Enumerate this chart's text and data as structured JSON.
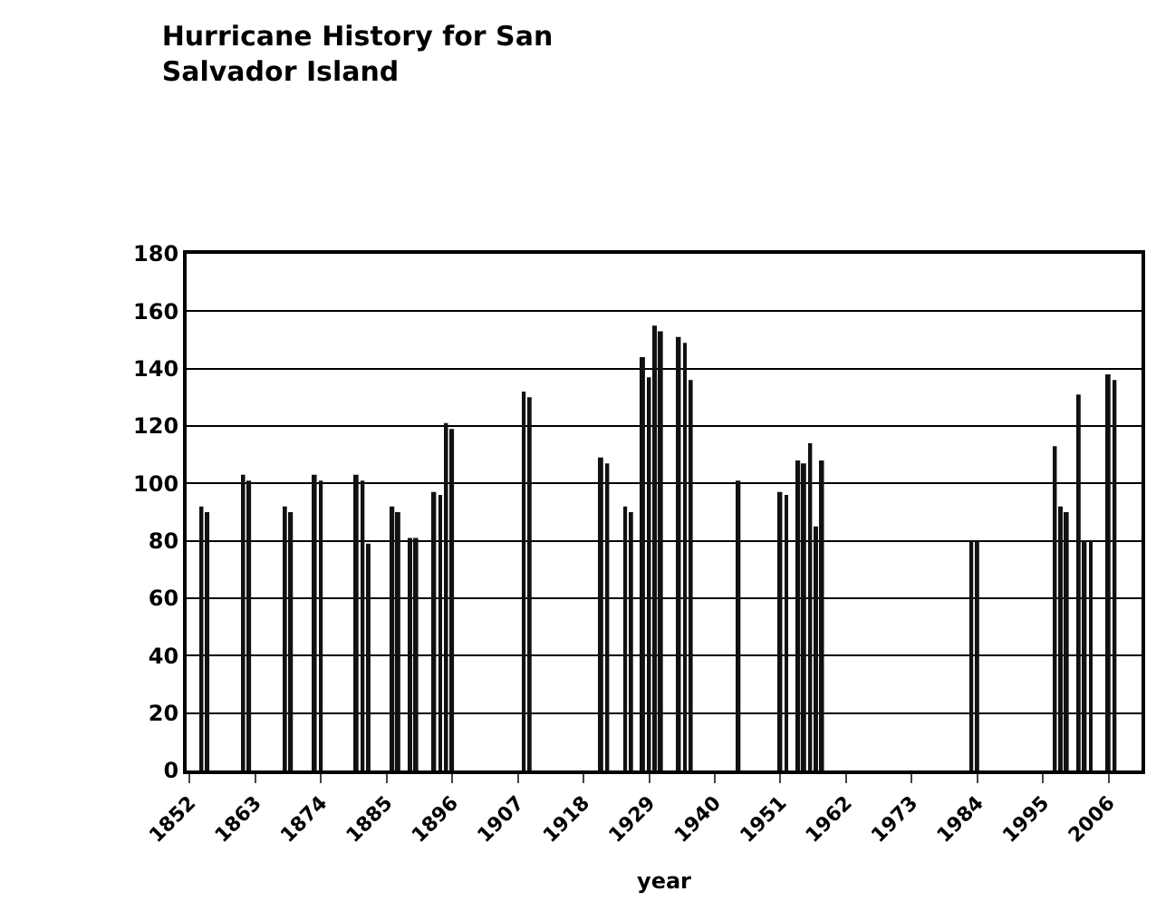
{
  "chart_data": {
    "type": "bar",
    "title": "Hurricane History for San\nSalvador Island",
    "xlabel": "year",
    "categories": [
      "1852",
      null,
      null,
      null,
      null,
      null,
      null,
      null,
      null,
      null,
      null,
      "1863",
      null,
      null,
      null,
      null,
      null,
      null,
      null,
      null,
      null,
      null,
      "1874",
      null,
      null,
      null,
      null,
      null,
      null,
      null,
      null,
      null,
      null,
      "1885",
      null,
      null,
      null,
      null,
      null,
      null,
      null,
      null,
      null,
      null,
      "1896",
      null,
      null,
      null,
      null,
      null,
      null,
      null,
      null,
      null,
      null,
      "1907",
      null,
      null,
      null,
      null,
      null,
      null,
      null,
      null,
      null,
      null,
      "1918",
      null,
      null,
      null,
      null,
      null,
      null,
      null,
      null,
      null,
      null,
      "1929",
      null,
      null,
      null,
      null,
      null,
      null,
      null,
      null,
      null,
      null,
      "1940",
      null,
      null,
      null,
      null,
      null,
      null,
      null,
      null,
      null,
      null,
      "1951",
      null,
      null,
      null,
      null,
      null,
      null,
      null,
      null,
      null,
      null,
      "1962",
      null,
      null,
      null,
      null,
      null,
      null,
      null,
      null,
      null,
      null,
      "1973",
      null,
      null,
      null,
      null,
      null,
      null,
      null,
      null,
      null,
      null,
      "1984",
      null,
      null,
      null,
      null,
      null,
      null,
      null,
      null,
      null,
      null,
      "1995",
      null,
      null,
      null,
      null,
      null,
      null,
      null,
      null,
      null,
      null,
      "2006",
      null,
      null,
      null,
      null,
      null
    ],
    "values": [
      null,
      null,
      92,
      90,
      null,
      null,
      null,
      null,
      null,
      103,
      101,
      null,
      null,
      null,
      null,
      null,
      92,
      90,
      null,
      null,
      null,
      103,
      101,
      null,
      null,
      null,
      null,
      null,
      103,
      101,
      79,
      null,
      null,
      null,
      92,
      90,
      null,
      81,
      81,
      null,
      null,
      97,
      96,
      121,
      119,
      null,
      null,
      null,
      null,
      null,
      null,
      null,
      null,
      null,
      null,
      null,
      132,
      130,
      null,
      null,
      null,
      null,
      null,
      null,
      null,
      null,
      null,
      null,
      null,
      109,
      107,
      null,
      null,
      92,
      90,
      null,
      144,
      137,
      155,
      153,
      null,
      null,
      151,
      149,
      136,
      null,
      null,
      null,
      null,
      null,
      null,
      null,
      101,
      null,
      null,
      null,
      null,
      null,
      null,
      97,
      96,
      null,
      108,
      107,
      114,
      85,
      108,
      null,
      null,
      null,
      null,
      null,
      null,
      null,
      null,
      null,
      null,
      null,
      null,
      null,
      null,
      null,
      null,
      null,
      null,
      null,
      null,
      null,
      null,
      null,
      null,
      80,
      80,
      null,
      null,
      null,
      null,
      null,
      null,
      null,
      null,
      null,
      null,
      null,
      null,
      113,
      92,
      90,
      null,
      131,
      80,
      80,
      null,
      null,
      138,
      136,
      null,
      null,
      null,
      null
    ],
    "color": "#111111",
    "ylim": [
      0,
      180
    ],
    "yticks": [
      0,
      20,
      40,
      60,
      80,
      100,
      120,
      140,
      160,
      180
    ],
    "grid": "y"
  }
}
